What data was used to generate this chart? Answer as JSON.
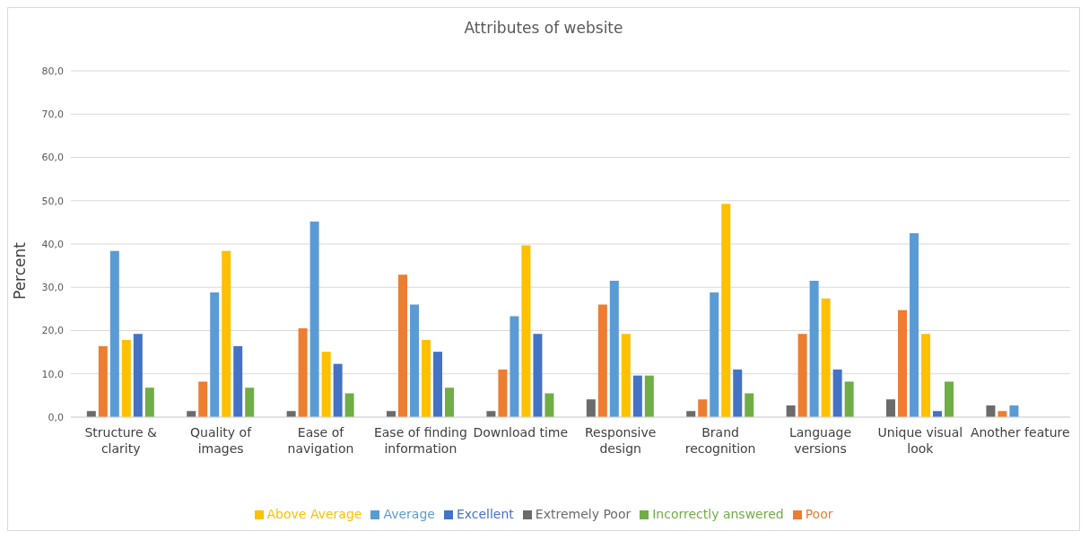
{
  "chart_data": {
    "type": "bar",
    "title": "Attributes of website",
    "ylabel": "Percent",
    "categories": [
      "Structure & clarity",
      "Quality of images",
      "Ease of navigation",
      "Ease of finding information",
      "Download time",
      "Responsive design",
      "Brand recognition",
      "Language versions",
      "Unique visual look",
      "Another feature"
    ],
    "series": [
      {
        "name": "Extremely Poor",
        "color": "#6b6b6b",
        "values": [
          1.4,
          1.4,
          1.4,
          1.4,
          1.4,
          4.1,
          1.4,
          2.7,
          4.1,
          2.7
        ]
      },
      {
        "name": "Poor",
        "color": "#ed7d31",
        "values": [
          16.4,
          8.2,
          20.5,
          32.9,
          11.0,
          26.0,
          4.1,
          19.2,
          24.7,
          1.4
        ]
      },
      {
        "name": "Average",
        "color": "#5b9bd5",
        "values": [
          38.4,
          28.8,
          45.2,
          26.0,
          23.3,
          31.5,
          28.8,
          31.5,
          42.5,
          2.7
        ]
      },
      {
        "name": "Above Average",
        "color": "#ffc000",
        "values": [
          17.8,
          38.4,
          15.1,
          17.8,
          39.7,
          19.2,
          49.3,
          27.4,
          19.2,
          null
        ]
      },
      {
        "name": "Excellent",
        "color": "#4472c4",
        "values": [
          19.2,
          16.4,
          12.3,
          15.1,
          19.2,
          9.6,
          11.0,
          11.0,
          1.4,
          null
        ]
      },
      {
        "name": "Incorrectly answered",
        "color": "#70ad47",
        "values": [
          6.8,
          6.8,
          5.5,
          6.8,
          5.5,
          9.6,
          5.5,
          8.2,
          8.2,
          null
        ]
      }
    ],
    "ylim": [
      0,
      80
    ],
    "yticks": [
      {
        "value": 0,
        "label": "0,0"
      },
      {
        "value": 10,
        "label": "10,0"
      },
      {
        "value": 20,
        "label": "20,0"
      },
      {
        "value": 30,
        "label": "30,0"
      },
      {
        "value": 40,
        "label": "40,0"
      },
      {
        "value": 50,
        "label": "50,0"
      },
      {
        "value": 60,
        "label": "60,0"
      },
      {
        "value": 70,
        "label": "70,0"
      },
      {
        "value": 80,
        "label": "80,0"
      }
    ],
    "grid": "y",
    "legend": "bottom"
  }
}
